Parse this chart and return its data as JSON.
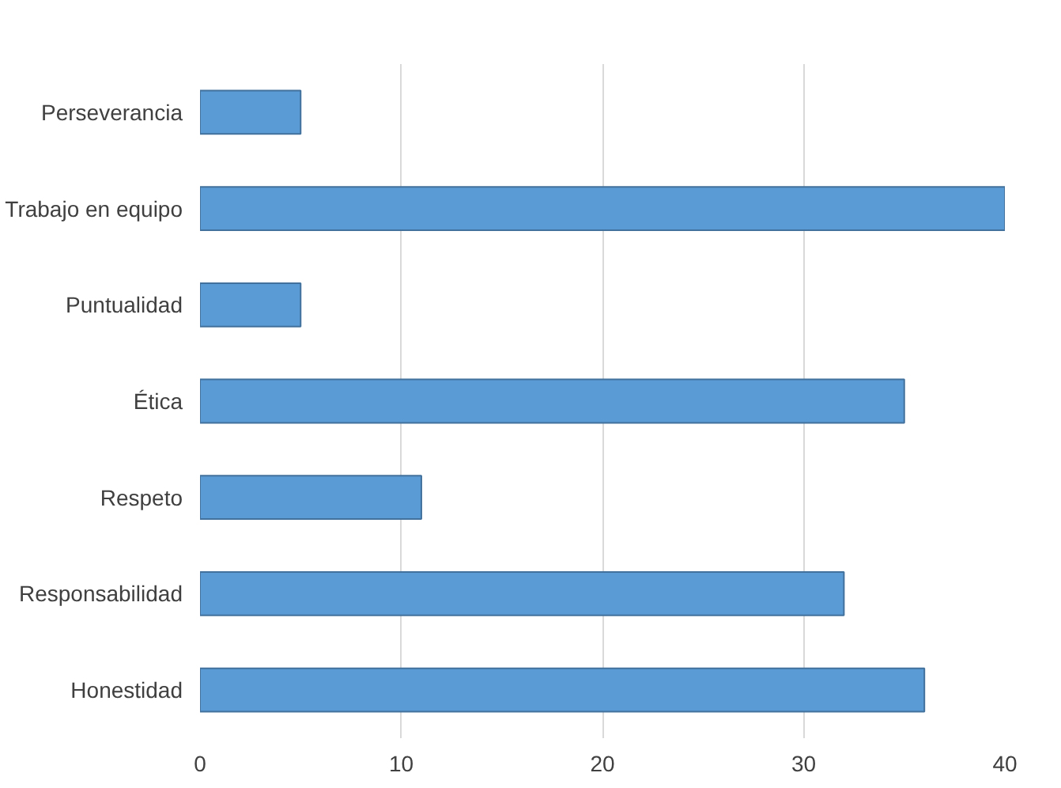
{
  "chart_data": {
    "type": "bar",
    "orientation": "horizontal",
    "categories": [
      "Perseverancia",
      "Trabajo en equipo",
      "Puntualidad",
      "Ética",
      "Respeto",
      "Responsabilidad",
      "Honestidad"
    ],
    "values": [
      5,
      40,
      5,
      35,
      11,
      32,
      36
    ],
    "color": "#5b9bd5",
    "xlim": [
      0,
      40
    ],
    "xticks": [
      0,
      10,
      20,
      30,
      40
    ],
    "grid": "x"
  }
}
